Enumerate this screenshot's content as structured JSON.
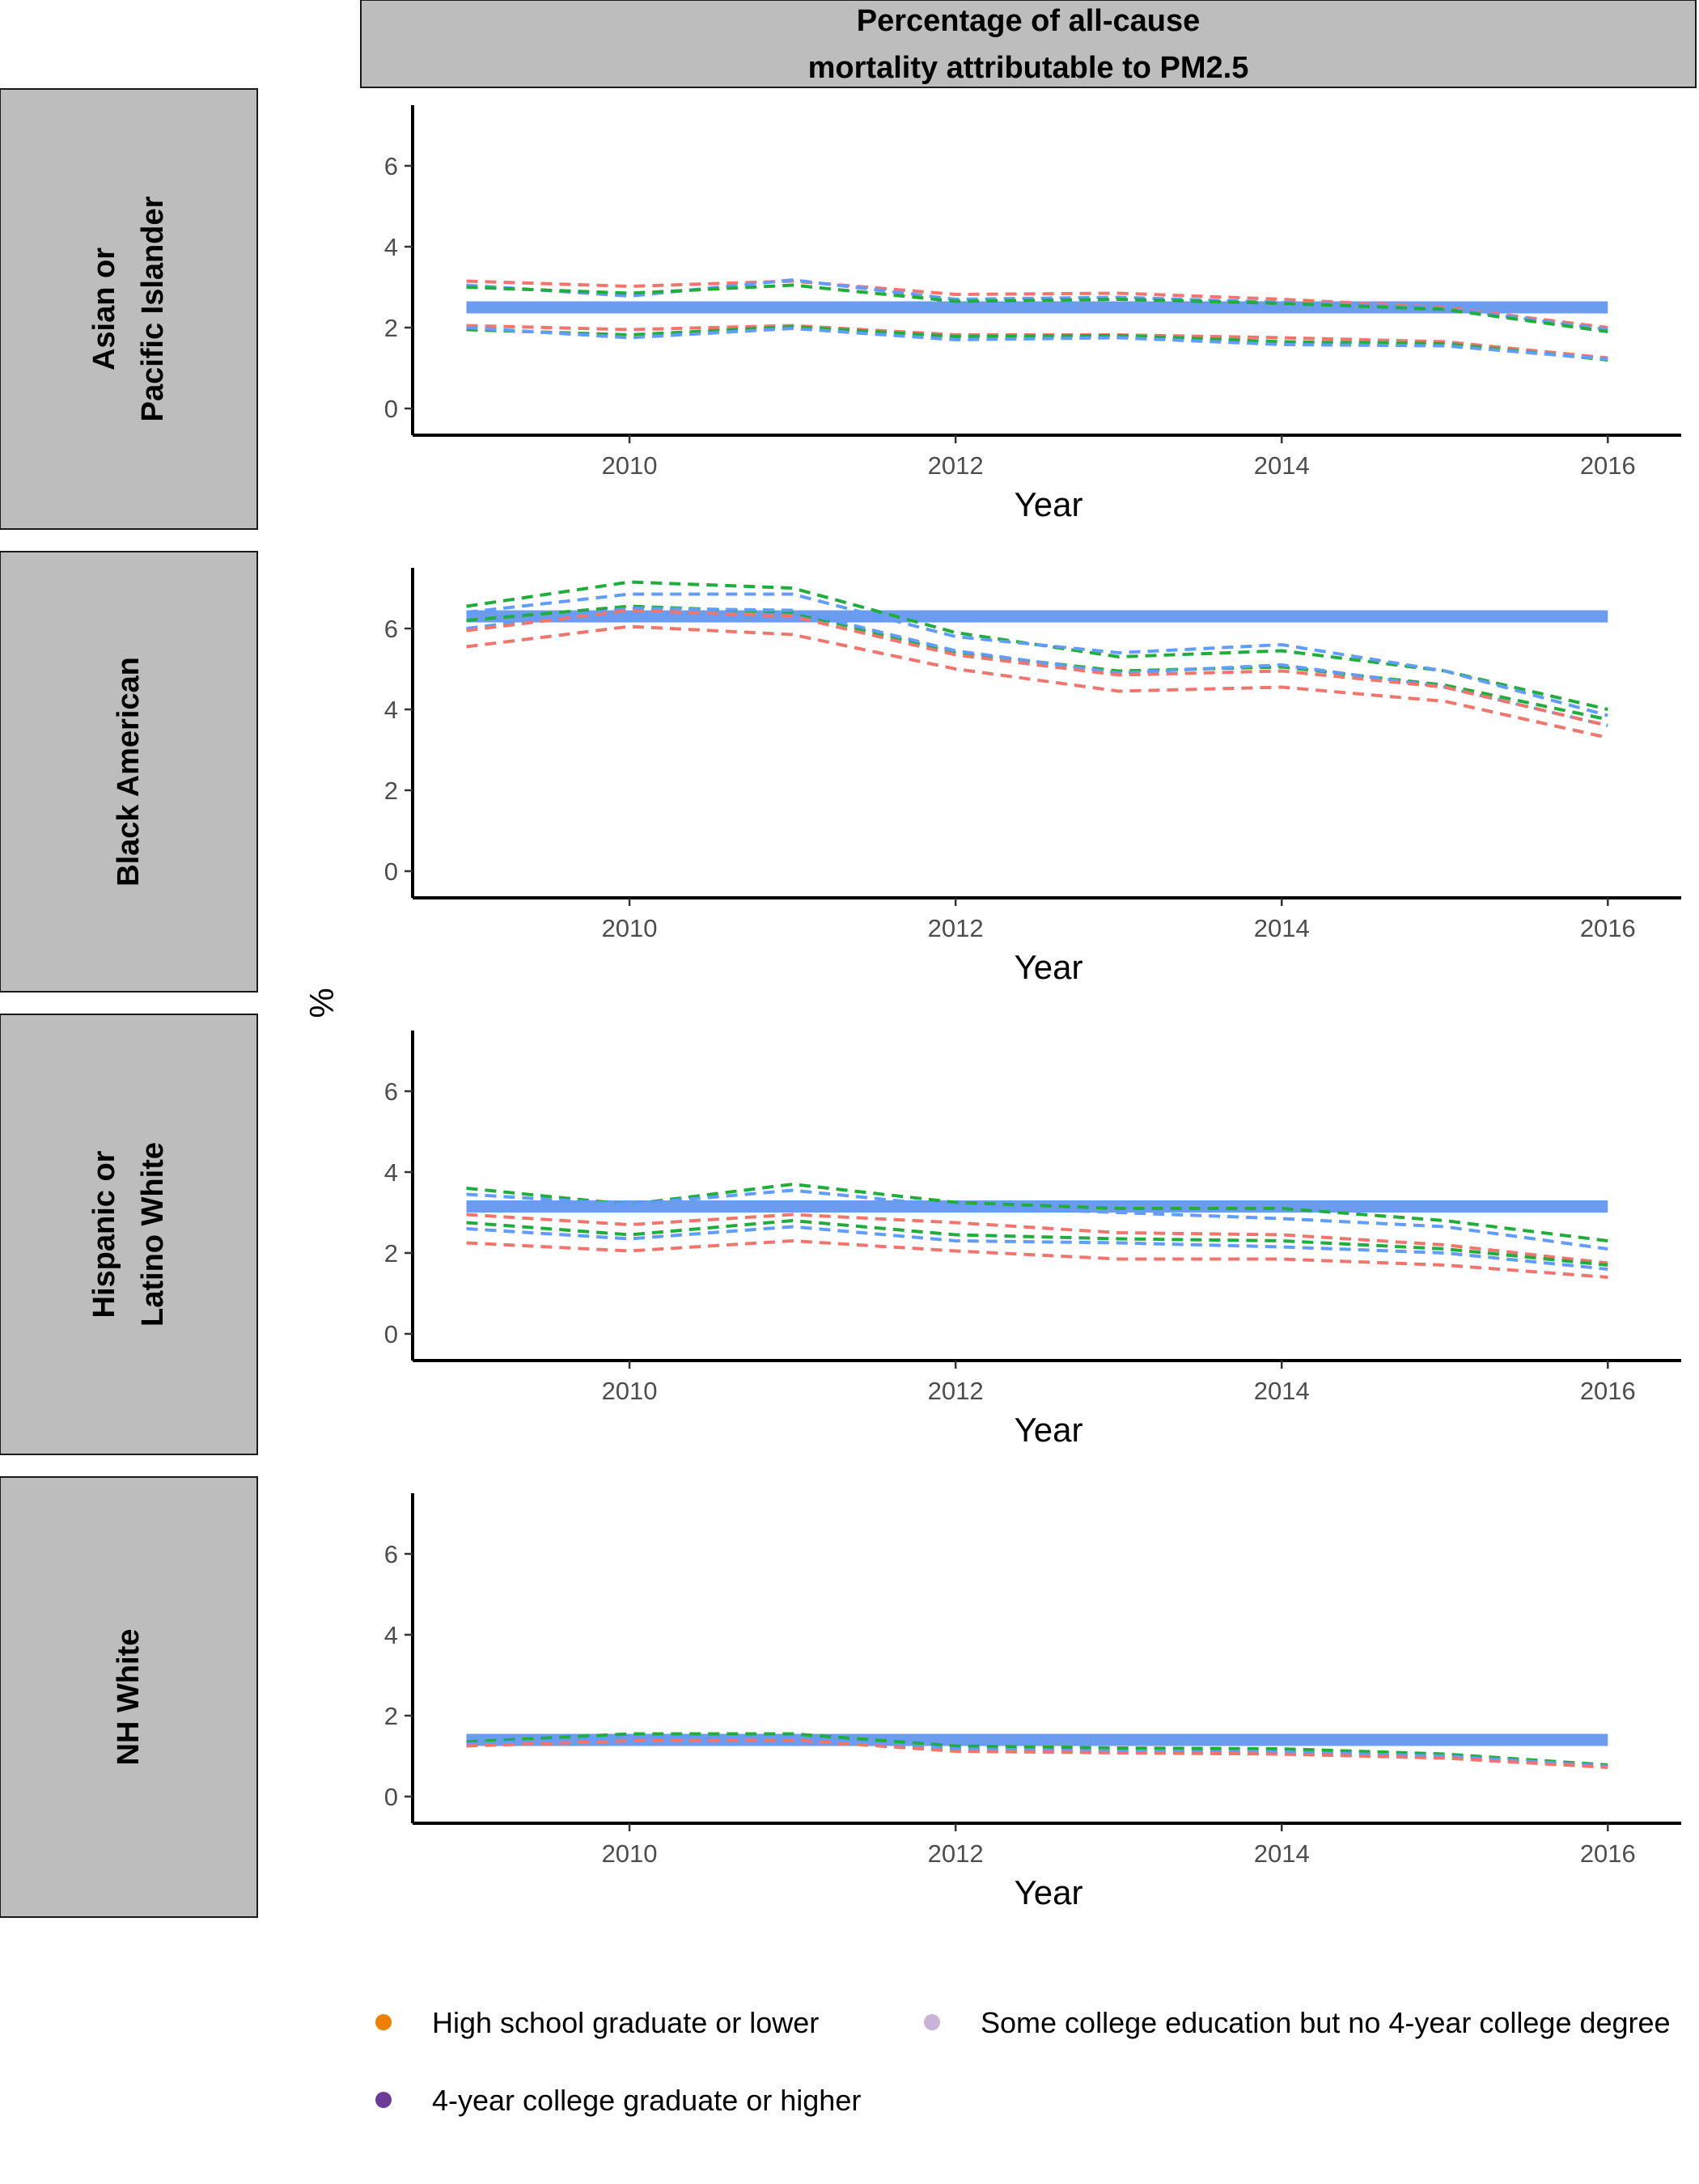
{
  "chart_data": {
    "type": "line",
    "title": "Percentage of all-cause mortality attributable to PM2.5",
    "title_lines": [
      "Percentage of all-cause",
      "mortality attributable to PM2.5"
    ],
    "xlabel": "Year",
    "ylabel": "%",
    "xlim": [
      2008.67,
      2016.45
    ],
    "ylim": [
      -0.3,
      7.5
    ],
    "x_ticks": [
      2010,
      2012,
      2014,
      2016
    ],
    "y_ticks": [
      0,
      2,
      4,
      6
    ],
    "x": [
      2009,
      2010,
      2011,
      2012,
      2013,
      2014,
      2015,
      2016
    ],
    "grid": false,
    "legend_position": "bottom",
    "legend": [
      {
        "label": "High school graduate or lower",
        "color": "#f07f00"
      },
      {
        "label": "Some college education but no 4-year college degree",
        "color": "#c9b3d6"
      },
      {
        "label": "4-year college graduate or higher",
        "color": "#6a3b97"
      }
    ],
    "line_colors": {
      "red": "#f0766d",
      "green": "#21ad3b",
      "blue": "#619cff",
      "reference": "#6b9cf0"
    },
    "panels": [
      {
        "label_lines": [
          "Asian or",
          "Pacific Islander"
        ],
        "reference": 2.5,
        "series": [
          {
            "color": "red",
            "values": [
              3.15,
              3.02,
              3.15,
              2.82,
              2.85,
              2.7,
              2.5,
              2.0
            ]
          },
          {
            "color": "blue",
            "values": [
              3.05,
              2.78,
              3.18,
              2.7,
              2.75,
              2.62,
              2.48,
              1.95
            ]
          },
          {
            "color": "green",
            "values": [
              3.0,
              2.85,
              3.05,
              2.65,
              2.7,
              2.6,
              2.45,
              1.9
            ]
          },
          {
            "color": "red",
            "values": [
              2.05,
              1.95,
              2.05,
              1.82,
              1.82,
              1.75,
              1.65,
              1.25
            ]
          },
          {
            "color": "green",
            "values": [
              1.95,
              1.82,
              2.02,
              1.78,
              1.8,
              1.65,
              1.6,
              1.2
            ]
          },
          {
            "color": "blue",
            "values": [
              2.0,
              1.75,
              1.98,
              1.7,
              1.75,
              1.58,
              1.55,
              1.22
            ]
          }
        ]
      },
      {
        "label_lines": [
          "Black American"
        ],
        "reference": 6.3,
        "series": [
          {
            "color": "green",
            "values": [
              6.55,
              7.15,
              7.0,
              5.9,
              5.3,
              5.45,
              4.95,
              4.0
            ]
          },
          {
            "color": "blue",
            "values": [
              6.4,
              6.85,
              6.85,
              5.8,
              5.4,
              5.6,
              4.95,
              3.85
            ]
          },
          {
            "color": "green",
            "values": [
              6.2,
              6.55,
              6.4,
              5.4,
              4.95,
              5.05,
              4.6,
              3.75
            ]
          },
          {
            "color": "blue",
            "values": [
              6.0,
              6.5,
              6.45,
              5.45,
              4.9,
              5.1,
              4.55,
              3.6
            ]
          },
          {
            "color": "red",
            "values": [
              5.95,
              6.45,
              6.3,
              5.35,
              4.85,
              4.95,
              4.55,
              3.6
            ]
          },
          {
            "color": "red",
            "values": [
              5.55,
              6.05,
              5.85,
              5.0,
              4.45,
              4.55,
              4.2,
              3.3
            ]
          }
        ]
      },
      {
        "label_lines": [
          "Hispanic or",
          "Latino White"
        ],
        "reference": 3.15,
        "series": [
          {
            "color": "green",
            "values": [
              3.6,
              3.2,
              3.7,
              3.25,
              3.1,
              3.1,
              2.8,
              2.3
            ]
          },
          {
            "color": "blue",
            "values": [
              3.45,
              3.2,
              3.55,
              3.15,
              3.0,
              2.85,
              2.65,
              2.1
            ]
          },
          {
            "color": "red",
            "values": [
              2.95,
              2.7,
              2.95,
              2.75,
              2.5,
              2.45,
              2.2,
              1.75
            ]
          },
          {
            "color": "green",
            "values": [
              2.75,
              2.45,
              2.8,
              2.45,
              2.35,
              2.3,
              2.1,
              1.7
            ]
          },
          {
            "color": "blue",
            "values": [
              2.6,
              2.35,
              2.65,
              2.3,
              2.25,
              2.15,
              2.0,
              1.6
            ]
          },
          {
            "color": "red",
            "values": [
              2.25,
              2.05,
              2.3,
              2.05,
              1.85,
              1.85,
              1.7,
              1.4
            ]
          }
        ]
      },
      {
        "label_lines": [
          "NH White"
        ],
        "reference": 1.4,
        "series": [
          {
            "color": "green",
            "values": [
              1.35,
              1.55,
              1.55,
              1.25,
              1.2,
              1.18,
              1.05,
              0.78
            ]
          },
          {
            "color": "blue",
            "values": [
              1.3,
              1.45,
              1.45,
              1.18,
              1.12,
              1.1,
              1.0,
              0.75
            ]
          },
          {
            "color": "red",
            "values": [
              1.25,
              1.38,
              1.4,
              1.12,
              1.08,
              1.05,
              0.95,
              0.72
            ]
          }
        ]
      }
    ]
  }
}
